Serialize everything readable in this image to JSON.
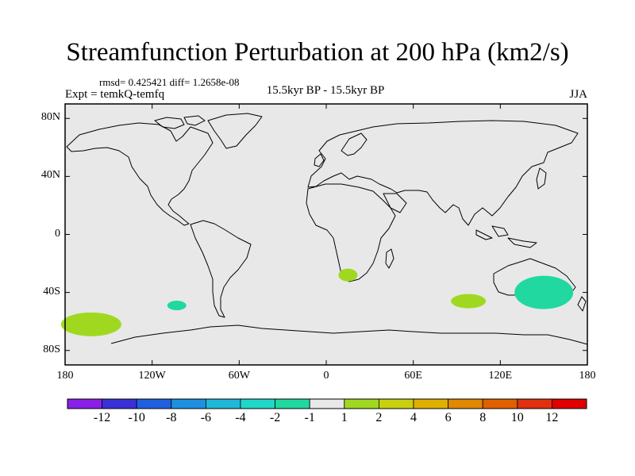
{
  "title": "Streamfunction Perturbation at 200 hPa (km2/s)",
  "stats": "rmsd= 0.425421 diff= 1.2658e-08",
  "experiment": "Expt = temkQ-temfq",
  "period": "15.5kyr BP - 15.5kyr BP",
  "season": "JJA",
  "map": {
    "lon_range": [
      -180,
      180
    ],
    "lat_range": [
      -90,
      90
    ],
    "ocean_color": "#e8e8e8",
    "lat_ticks": [
      "80N",
      "40N",
      "0",
      "40S",
      "80S"
    ],
    "lat_tick_values": [
      80,
      40,
      0,
      -40,
      -80
    ],
    "lon_ticks": [
      "180",
      "120W",
      "60W",
      "0",
      "60E",
      "120E",
      "180"
    ],
    "lon_tick_values": [
      -180,
      -120,
      -60,
      0,
      60,
      120,
      180
    ]
  },
  "chart_data": {
    "type": "heatmap",
    "title": "Streamfunction Perturbation at 200 hPa (km2/s)",
    "units": "km2/s",
    "anomalies": [
      {
        "lon": 15,
        "lat": -28,
        "sign": "positive",
        "class": "1 to 2",
        "color": "#a0d820"
      },
      {
        "lon": -162,
        "lat": -62,
        "sign": "positive",
        "class": "1 to 2",
        "color": "#a0d820"
      },
      {
        "lon": -103,
        "lat": -49,
        "sign": "negative",
        "class": "-2 to -1",
        "color": "#20d8a0"
      },
      {
        "lon": 98,
        "lat": -46,
        "sign": "positive",
        "class": "1 to 2",
        "color": "#a0d820"
      },
      {
        "lon": 150,
        "lat": -40,
        "sign": "negative",
        "class": "-2 to -1",
        "color": "#20d8a0"
      }
    ],
    "colorbar": {
      "labels": [
        "-12",
        "-10",
        "-8",
        "-6",
        "-4",
        "-2",
        "-1",
        "1",
        "2",
        "4",
        "6",
        "8",
        "10",
        "12"
      ],
      "colors": [
        "#8a20e8",
        "#3a30d8",
        "#2060e0",
        "#1e90e0",
        "#20b8d8",
        "#20d8c8",
        "#20d8a0",
        "#e8e8e8",
        "#a0d820",
        "#c8d010",
        "#e0b000",
        "#e08800",
        "#e06000",
        "#e03010",
        "#e00000"
      ]
    }
  }
}
